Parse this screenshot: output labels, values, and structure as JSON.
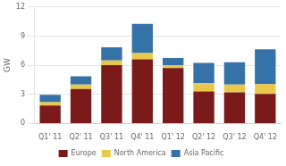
{
  "chart_data": {
    "type": "bar",
    "stacked": true,
    "categories": [
      "Q1' 11",
      "Q2' 11",
      "Q3' 11",
      "Q4' 11",
      "Q1' 12",
      "Q2' 12",
      "Q3' 12",
      "Q4' 12"
    ],
    "series": [
      {
        "name": "Europe",
        "color": "#7B1A1A",
        "values": [
          1.85,
          3.55,
          6.0,
          6.6,
          5.7,
          3.3,
          3.2,
          3.05
        ]
      },
      {
        "name": "North America",
        "color": "#E8C84A",
        "values": [
          0.35,
          0.45,
          0.5,
          0.65,
          0.3,
          0.85,
          0.8,
          1.0
        ]
      },
      {
        "name": "Asia Pacific",
        "color": "#3472A8",
        "values": [
          0.75,
          0.85,
          1.35,
          3.0,
          0.75,
          2.1,
          2.3,
          3.6
        ]
      }
    ],
    "ylabel": "GW",
    "ylim": [
      0,
      12
    ],
    "yticks": [
      0,
      3,
      6,
      9,
      12
    ],
    "grid": true,
    "legend": "bottom"
  }
}
